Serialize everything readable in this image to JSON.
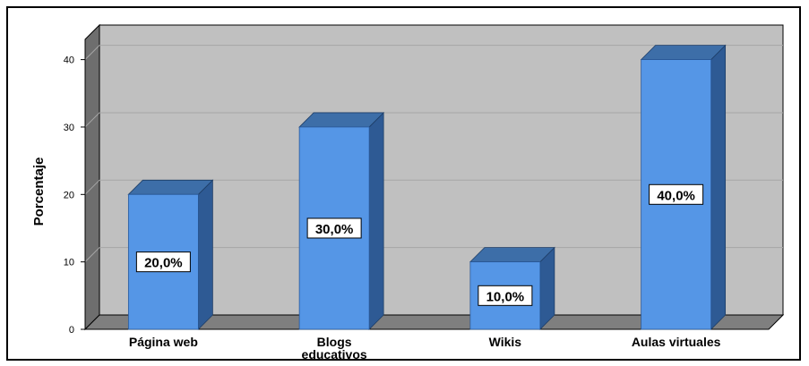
{
  "chart_data": {
    "type": "bar",
    "title": "",
    "xlabel": "",
    "ylabel": "Porcentaje",
    "categories": [
      "Página web",
      "Blogs educativos",
      "Wikis",
      "Aulas virtuales"
    ],
    "category_lines": [
      [
        "Página web"
      ],
      [
        "Blogs",
        "educativos"
      ],
      [
        "Wikis"
      ],
      [
        "Aulas virtuales"
      ]
    ],
    "values": [
      20,
      30,
      10,
      40
    ],
    "data_labels": [
      "20,0%",
      "30,0%",
      "10,0%",
      "40,0%"
    ],
    "yticks": [
      0,
      10,
      20,
      30,
      40
    ],
    "ytick_labels": [
      "0",
      "10",
      "20",
      "30",
      "40"
    ],
    "ylim": [
      0,
      43
    ],
    "grid": true,
    "style": "3d",
    "colors": {
      "bar_front": "#5596e6",
      "bar_side": "#2e5a94",
      "bar_top": "#3d6ea8",
      "back_wall": "#c0c0c0",
      "floor": "#7f7f7f",
      "left_wall": "#6e6e6e",
      "gridline": "#a6a6a6"
    }
  }
}
